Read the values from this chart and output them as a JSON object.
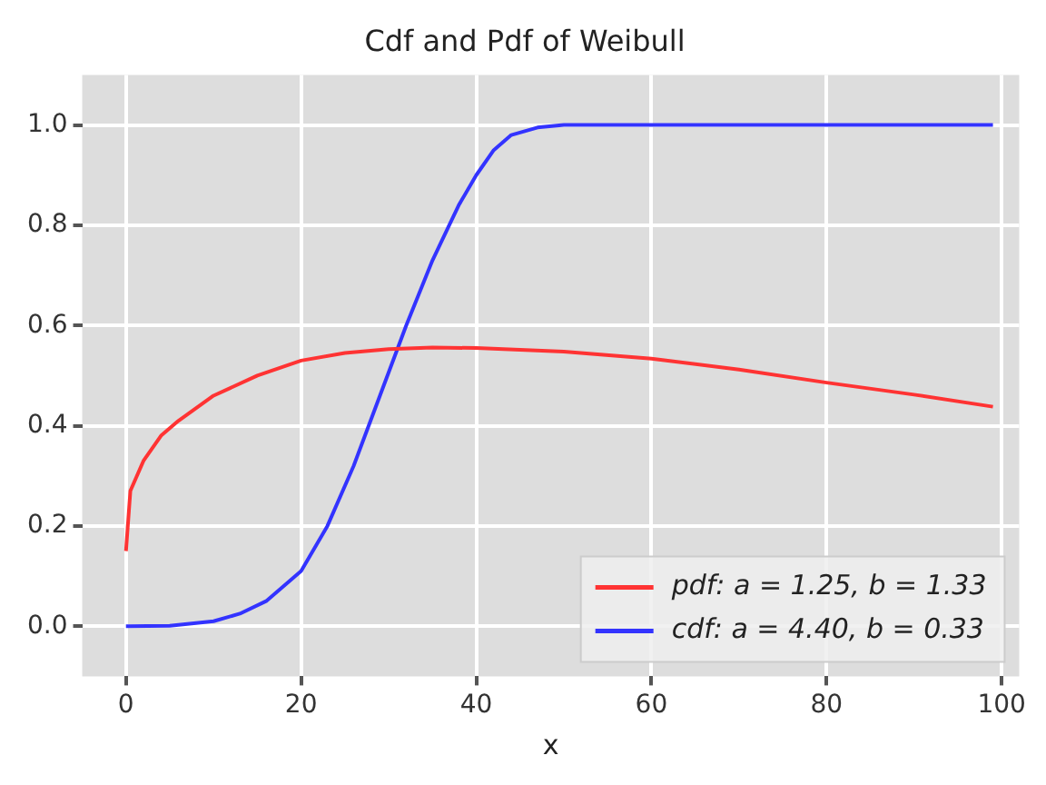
{
  "chart_data": {
    "type": "line",
    "title": "Cdf and Pdf of Weibull",
    "xlabel": "x",
    "xlim": [
      -5,
      102
    ],
    "xticks": [
      0,
      20,
      40,
      60,
      80,
      100
    ],
    "ylim": [
      -0.1,
      1.1
    ],
    "yticks": [
      {
        "value": 0,
        "label": "0.0"
      },
      0.2,
      0.4,
      0.6,
      0.8,
      {
        "value": 1,
        "label": "1.0"
      }
    ],
    "grid": true,
    "legend": "bottom right",
    "marker": "none",
    "line_style": "solid",
    "series": [
      {
        "name": "pdf: a = 1.25, b = 1.33",
        "color": "#ff3333",
        "x": [
          0,
          0.5,
          1,
          2,
          4,
          6,
          10,
          15,
          20,
          25,
          30,
          35,
          40,
          50,
          60,
          70,
          80,
          90,
          99
        ],
        "values": [
          0.15,
          0.27,
          0.29,
          0.33,
          0.38,
          0.41,
          0.46,
          0.5,
          0.53,
          0.545,
          0.553,
          0.556,
          0.555,
          0.548,
          0.534,
          0.512,
          0.486,
          0.462,
          0.438
        ]
      },
      {
        "name": "cdf: a = 4.40, b = 0.33",
        "color": "#3333ff",
        "x": [
          0,
          5,
          10,
          13,
          16,
          20,
          23,
          26,
          29,
          32,
          35,
          38,
          40,
          42,
          44,
          47,
          50,
          60,
          80,
          99
        ],
        "values": [
          0,
          0.001,
          0.01,
          0.025,
          0.05,
          0.11,
          0.2,
          0.32,
          0.46,
          0.6,
          0.73,
          0.84,
          0.9,
          0.95,
          0.98,
          0.995,
          1,
          1,
          1,
          1
        ]
      }
    ]
  }
}
